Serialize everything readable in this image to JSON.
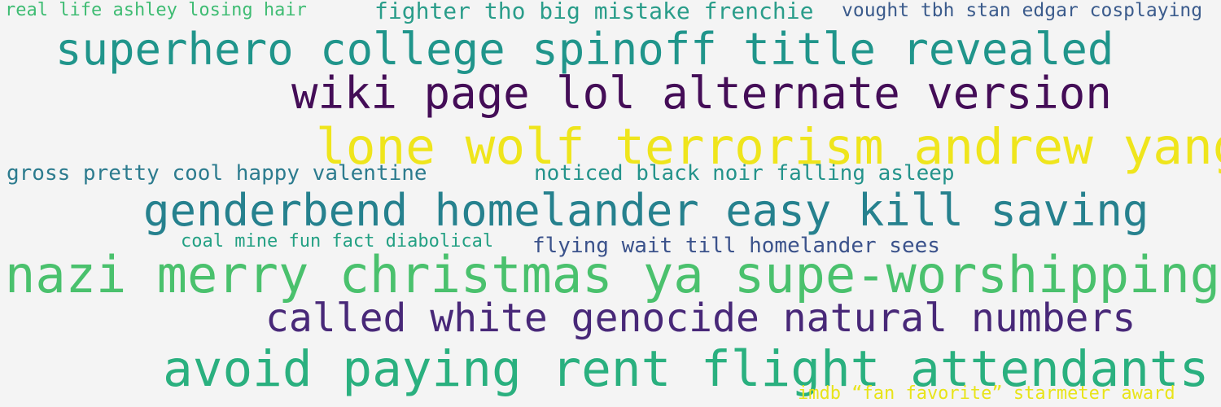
{
  "word_cloud": {
    "phrases": [
      {
        "text": "real life ashley losing hair",
        "color": "#3fbc73"
      },
      {
        "text": "fighter tho big mistake frenchie",
        "color": "#2a9d8a"
      },
      {
        "text": "vought tbh stan edgar cosplaying",
        "color": "#3b5b8c"
      },
      {
        "text": "superhero college spinoff title revealed",
        "color": "#20958b"
      },
      {
        "text": "wiki page lol alternate version",
        "color": "#440d57"
      },
      {
        "text": "lone wolf terrorism andrew yang",
        "color": "#efe51c"
      },
      {
        "text": "gross pretty cool happy valentine",
        "color": "#2c7b8e"
      },
      {
        "text": "noticed black noir falling asleep",
        "color": "#24938b"
      },
      {
        "text": "genderbend homelander easy kill saving",
        "color": "#26818e"
      },
      {
        "text": "coal mine fun fact diabolical",
        "color": "#23a083"
      },
      {
        "text": "flying wait till homelander sees",
        "color": "#3b528b"
      },
      {
        "text": "nazi merry christmas ya supe-worshipping",
        "color": "#4ac16d"
      },
      {
        "text": "called white genocide natural numbers",
        "color": "#482878"
      },
      {
        "text": "avoid paying rent flight attendants",
        "color": "#2ab07f"
      },
      {
        "text": "imdb “fan favorite” starmeter award",
        "color": "#e8e419"
      }
    ]
  }
}
